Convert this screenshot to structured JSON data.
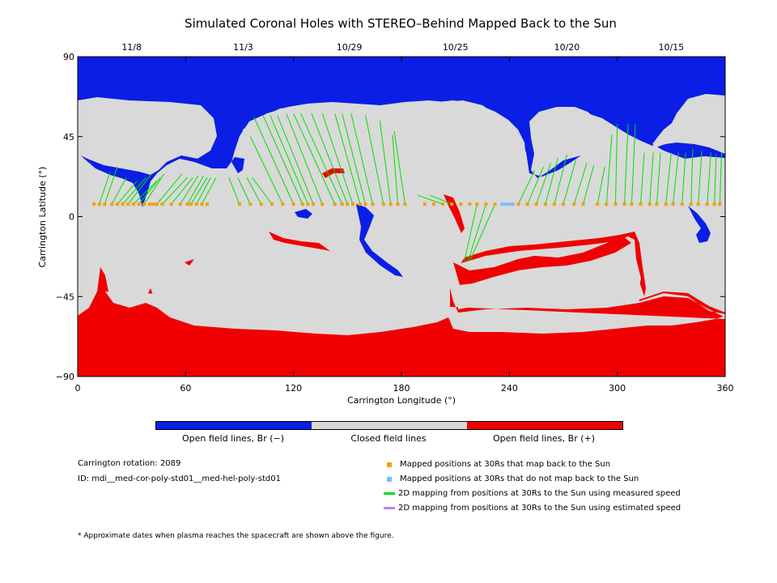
{
  "title": "Simulated Coronal Holes with STEREO–Behind Mapped Back to the Sun",
  "colors": {
    "open_negative": "#0a1ee6",
    "closed": "#d9d9d9",
    "open_positive": "#f00000",
    "mapped": "#f0a000",
    "not_mapped": "#7ab8ff",
    "measured": "#00e000",
    "estimated": "#c080f0"
  },
  "chart_data": {
    "type": "heatmap",
    "title": "Simulated Coronal Holes with STEREO–Behind Mapped Back to the Sun",
    "xlabel": "Carrington Longitude (°)",
    "ylabel": "Carrington Latitude (°)",
    "xlim": [
      0,
      360
    ],
    "ylim": [
      -90,
      90
    ],
    "x_ticks": [
      "0",
      "60",
      "120",
      "180",
      "240",
      "300",
      "360"
    ],
    "y_ticks": [
      "90",
      "45",
      "0",
      "−45",
      "−90"
    ],
    "top_date_ticks": [
      {
        "label": "11/8",
        "lon": 30
      },
      {
        "label": "11/3",
        "lon": 92
      },
      {
        "label": "10/29",
        "lon": 151
      },
      {
        "label": "10/25",
        "lon": 210
      },
      {
        "label": "10/20",
        "lon": 272
      },
      {
        "label": "10/15",
        "lon": 330
      }
    ],
    "colorbar_labels": [
      "Open field lines, Br (−)",
      "Closed field lines",
      "Open field lines, Br (+)"
    ],
    "mapped_latitude": 7,
    "mapped_lons": [
      9,
      12,
      15,
      19,
      22,
      25,
      28,
      31,
      34,
      37,
      40,
      42,
      44,
      47,
      52,
      57,
      61,
      63,
      66,
      69,
      72,
      90,
      96,
      102,
      108,
      114,
      120,
      125,
      128,
      131,
      136,
      143,
      147,
      150,
      153,
      157,
      160,
      164,
      170,
      174,
      178,
      182,
      193,
      198,
      203,
      208,
      213,
      218,
      222,
      227,
      232,
      245,
      250,
      255,
      260,
      265,
      270,
      276,
      281,
      289,
      294,
      299,
      304,
      308,
      313,
      318,
      322,
      327,
      331,
      336,
      341,
      345,
      350,
      354,
      357
    ],
    "not_mapped_lons": [
      236,
      238,
      240,
      242
    ],
    "measured_speed_lines": [
      [
        12,
        18,
        25
      ],
      [
        15,
        22,
        28
      ],
      [
        19,
        27,
        22
      ],
      [
        22,
        33,
        20
      ],
      [
        25,
        38,
        22
      ],
      [
        28,
        41,
        24
      ],
      [
        31,
        44,
        20
      ],
      [
        34,
        46,
        22
      ],
      [
        37,
        48,
        24
      ],
      [
        44,
        58,
        24
      ],
      [
        47,
        61,
        22
      ],
      [
        52,
        64,
        22
      ],
      [
        57,
        67,
        23
      ],
      [
        61,
        70,
        23
      ],
      [
        63,
        72,
        22
      ],
      [
        66,
        74,
        22
      ],
      [
        69,
        77,
        22
      ],
      [
        90,
        84,
        22
      ],
      [
        96,
        89,
        22
      ],
      [
        102,
        94,
        22
      ],
      [
        108,
        97,
        22
      ],
      [
        114,
        96,
        45
      ],
      [
        120,
        98,
        56
      ],
      [
        125,
        103,
        57
      ],
      [
        128,
        107,
        57
      ],
      [
        131,
        111,
        57
      ],
      [
        136,
        116,
        58
      ],
      [
        143,
        120,
        58
      ],
      [
        147,
        124,
        58
      ],
      [
        150,
        130,
        58
      ],
      [
        153,
        136,
        58
      ],
      [
        157,
        143,
        58
      ],
      [
        160,
        147,
        58
      ],
      [
        164,
        152,
        58
      ],
      [
        170,
        160,
        57
      ],
      [
        174,
        168,
        54
      ],
      [
        178,
        175,
        46
      ],
      [
        182,
        176,
        48
      ],
      [
        203,
        189,
        12
      ],
      [
        208,
        196,
        12
      ],
      [
        222,
        215,
        -25
      ],
      [
        227,
        217,
        -25
      ],
      [
        232,
        218,
        -25
      ],
      [
        245,
        254,
        26
      ],
      [
        250,
        259,
        28
      ],
      [
        255,
        263,
        30
      ],
      [
        260,
        267,
        33
      ],
      [
        265,
        272,
        35
      ],
      [
        270,
        277,
        32
      ],
      [
        276,
        283,
        30
      ],
      [
        281,
        287,
        29
      ],
      [
        289,
        293,
        28
      ],
      [
        294,
        297,
        46
      ],
      [
        299,
        300,
        52
      ],
      [
        304,
        306,
        52
      ],
      [
        308,
        310,
        52
      ],
      [
        313,
        315,
        36
      ],
      [
        318,
        320,
        36
      ],
      [
        322,
        324,
        36
      ],
      [
        327,
        330,
        36
      ],
      [
        331,
        334,
        36
      ],
      [
        336,
        338,
        36
      ],
      [
        341,
        342,
        38
      ],
      [
        345,
        347,
        37
      ],
      [
        350,
        352,
        36
      ],
      [
        354,
        355,
        35
      ],
      [
        357,
        358,
        36
      ]
    ]
  },
  "meta": {
    "carrington_rotation": "Carrington rotation: 2089",
    "id": "ID: mdi__med-cor-poly-std01__med-hel-poly-std01"
  },
  "legend": {
    "mapped": "Mapped positions at 30Rs that map back to the Sun",
    "not_mapped": "Mapped positions at 30Rs that do not map back to the Sun",
    "measured": "2D mapping from positions at 30Rs to the Sun using measured speed",
    "estimated": "2D mapping from positions at 30Rs to the Sun using estimated speed"
  },
  "footnote": "* Approximate dates when plasma reaches the spacecraft are shown above the figure."
}
